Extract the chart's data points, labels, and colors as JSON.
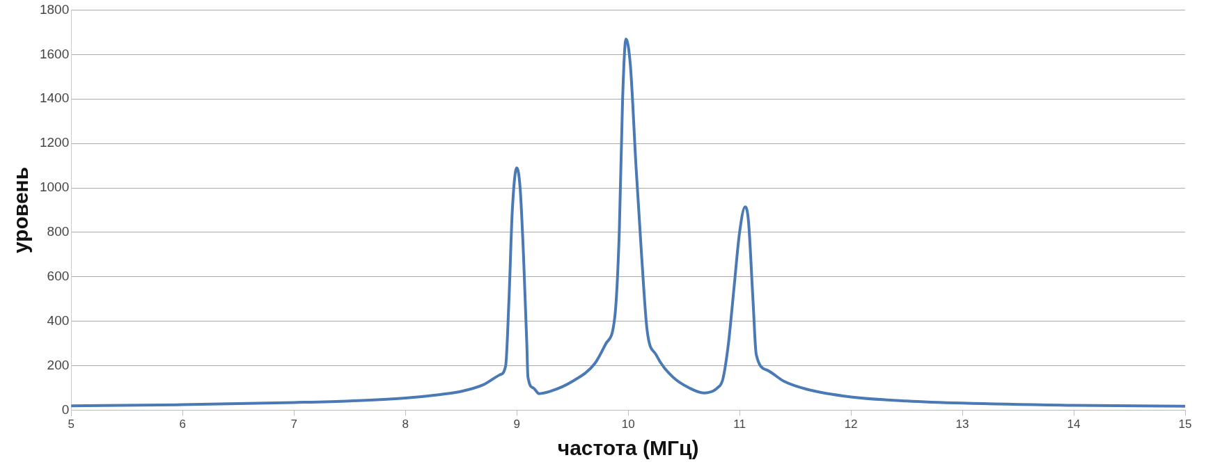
{
  "chart_data": {
    "type": "line",
    "xlabel": "частота (МГц)",
    "ylabel": "уровень",
    "x": [
      5,
      6,
      7,
      7.5,
      8,
      8.3,
      8.5,
      8.7,
      8.85,
      8.9,
      8.93,
      8.96,
      9.0,
      9.03,
      9.06,
      9.09,
      9.1,
      9.15,
      9.2,
      9.3,
      9.5,
      9.7,
      9.8,
      9.88,
      9.92,
      9.95,
      9.98,
      10.02,
      10.07,
      10.12,
      10.17,
      10.25,
      10.4,
      10.55,
      10.68,
      10.8,
      10.85,
      10.9,
      10.95,
      11.0,
      11.05,
      11.08,
      11.12,
      11.15,
      11.25,
      11.4,
      11.6,
      12,
      12.5,
      13,
      14,
      15
    ],
    "series": [
      {
        "color": "#4a7ab5",
        "values": [
          20,
          25,
          35,
          42,
          55,
          70,
          85,
          115,
          160,
          200,
          500,
          900,
          1090,
          1000,
          700,
          300,
          150,
          100,
          75,
          85,
          130,
          210,
          300,
          420,
          800,
          1400,
          1670,
          1550,
          1100,
          700,
          360,
          250,
          150,
          100,
          78,
          100,
          140,
          300,
          550,
          800,
          915,
          850,
          500,
          250,
          180,
          130,
          95,
          60,
          42,
          32,
          22,
          18
        ]
      }
    ],
    "xlim": [
      5,
      15
    ],
    "xticks": [
      5,
      6,
      7,
      8,
      9,
      10,
      11,
      12,
      13,
      14,
      15
    ],
    "ylim": [
      0,
      1800
    ],
    "yticks": [
      0,
      200,
      400,
      600,
      800,
      1000,
      1200,
      1400,
      1600,
      1800
    ],
    "grid": "y",
    "legend": false,
    "marker": "none",
    "line_style": "solid"
  }
}
